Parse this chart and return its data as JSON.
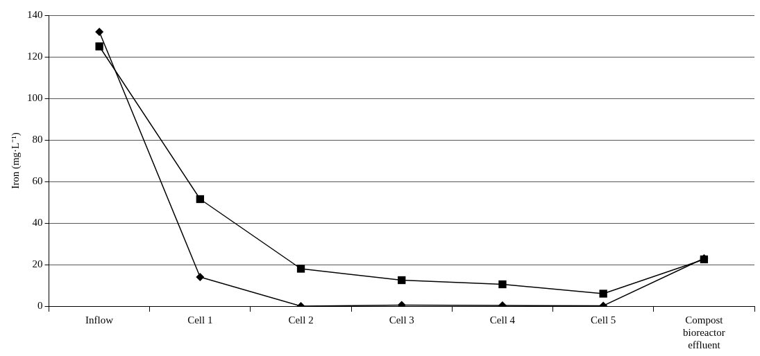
{
  "chart_data": {
    "type": "line",
    "ylabel": "Iron (mg·L⁻¹)",
    "categories": [
      "Inflow",
      "Cell 1",
      "Cell 2",
      "Cell 3",
      "Cell 4",
      "Cell 5",
      "Compost bioreactor effluent"
    ],
    "series": [
      {
        "color": "#000000",
        "marker": "diamond",
        "values": [
          132,
          14,
          0,
          0.5,
          0.3,
          0.2,
          23
        ]
      },
      {
        "color": "#000000",
        "marker": "square",
        "values": [
          125,
          51.5,
          18,
          12.5,
          10.5,
          6,
          22.5
        ]
      }
    ],
    "ylim": [
      0,
      140
    ],
    "yticks": [
      0,
      20,
      40,
      60,
      80,
      100,
      120,
      140
    ],
    "grid": "y",
    "legend": false,
    "line_style": "solid"
  }
}
